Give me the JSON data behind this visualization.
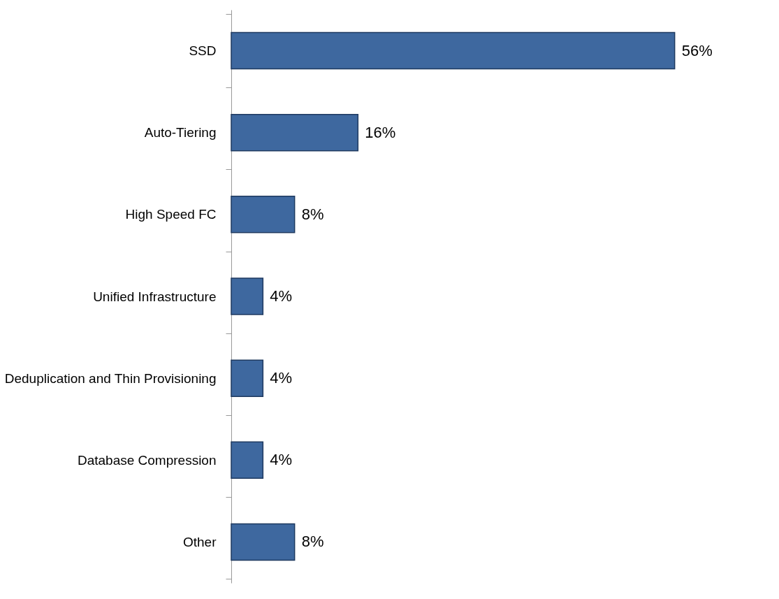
{
  "chart_data": {
    "type": "bar",
    "orientation": "horizontal",
    "categories": [
      "SSD",
      "Auto-Tiering",
      "High Speed FC",
      "Unified Infrastructure",
      "Deduplication and Thin Provisioning",
      "Database Compression",
      "Other"
    ],
    "values": [
      56,
      16,
      8,
      4,
      4,
      4,
      8
    ],
    "value_labels": [
      "56%",
      "16%",
      "8%",
      "4%",
      "4%",
      "4%",
      "8%"
    ],
    "color": "#3e689f",
    "tick_labels": "y"
  }
}
